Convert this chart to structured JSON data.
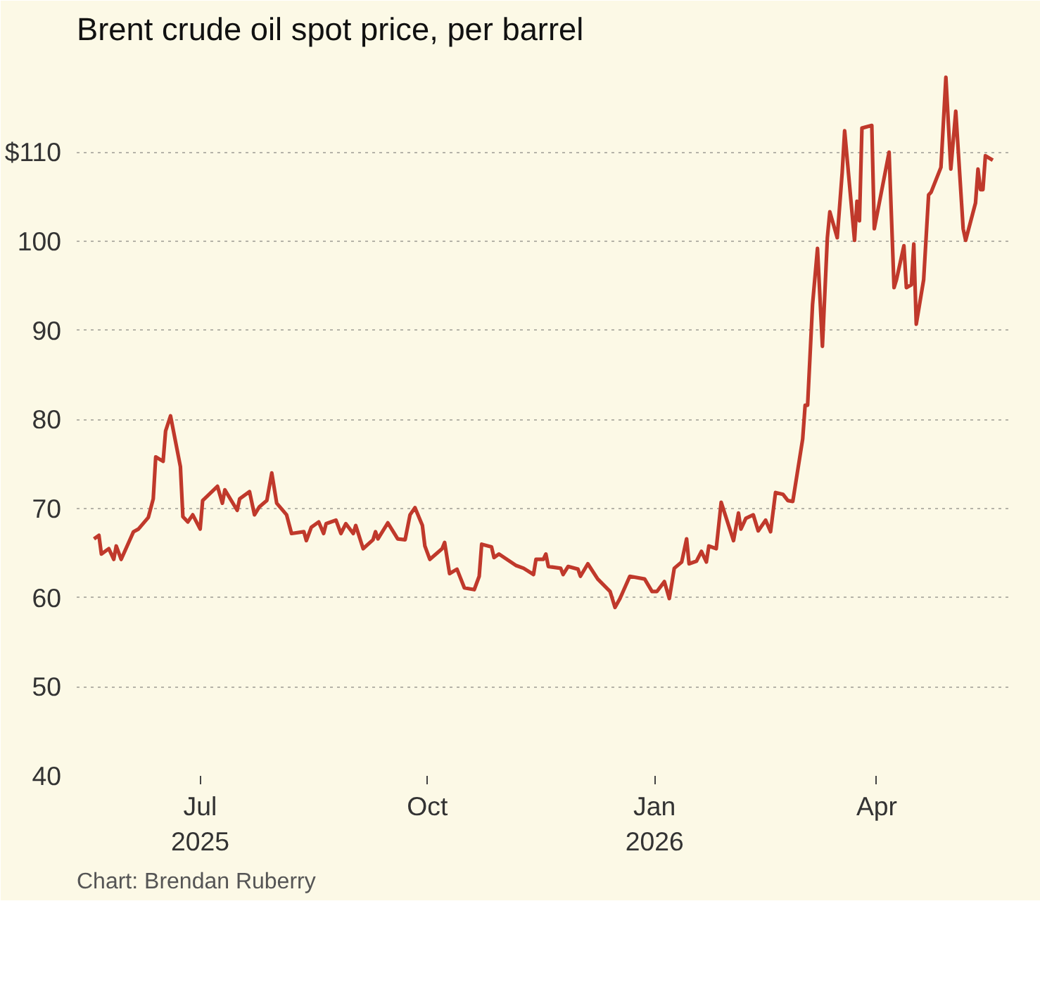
{
  "chart_data": {
    "type": "line",
    "title": "Brent crude oil spot price, per barrel",
    "annotations": [
      "Chart: Brendan Ruberry"
    ],
    "x": [
      "2025-05-19",
      "2025-05-21",
      "2025-05-22",
      "2025-05-25",
      "2025-05-27",
      "2025-05-28",
      "2025-05-30",
      "2025-06-04",
      "2025-06-06",
      "2025-06-10",
      "2025-06-12",
      "2025-06-13",
      "2025-06-16",
      "2025-06-17",
      "2025-06-19",
      "2025-06-23",
      "2025-06-24",
      "2025-06-26",
      "2025-06-28",
      "2025-07-01",
      "2025-07-02",
      "2025-07-08",
      "2025-07-10",
      "2025-07-11",
      "2025-07-16",
      "2025-07-17",
      "2025-07-21",
      "2025-07-23",
      "2025-07-25",
      "2025-07-28",
      "2025-07-30",
      "2025-08-01",
      "2025-08-05",
      "2025-08-07",
      "2025-08-12",
      "2025-08-13",
      "2025-08-15",
      "2025-08-18",
      "2025-08-20",
      "2025-08-21",
      "2025-08-25",
      "2025-08-27",
      "2025-08-29",
      "2025-09-01",
      "2025-09-02",
      "2025-09-05",
      "2025-09-09",
      "2025-09-10",
      "2025-09-11",
      "2025-09-15",
      "2025-09-19",
      "2025-09-22",
      "2025-09-24",
      "2025-09-26",
      "2025-09-29",
      "2025-09-30",
      "2025-10-02",
      "2025-10-07",
      "2025-10-08",
      "2025-10-10",
      "2025-10-13",
      "2025-10-16",
      "2025-10-20",
      "2025-10-22",
      "2025-10-23",
      "2025-10-27",
      "2025-10-28",
      "2025-10-30",
      "2025-11-06",
      "2025-11-09",
      "2025-11-13",
      "2025-11-14",
      "2025-11-17",
      "2025-11-18",
      "2025-11-19",
      "2025-11-24",
      "2025-11-25",
      "2025-11-27",
      "2025-12-01",
      "2025-12-02",
      "2025-12-05",
      "2025-12-09",
      "2025-12-14",
      "2025-12-16",
      "2025-12-18",
      "2025-12-22",
      "2025-12-28",
      "2025-12-31",
      "2026-01-02",
      "2026-01-05",
      "2026-01-07",
      "2026-01-09",
      "2026-01-12",
      "2026-01-14",
      "2026-01-15",
      "2026-01-18",
      "2026-01-20",
      "2026-01-22",
      "2026-01-23",
      "2026-01-26",
      "2026-01-28",
      "2026-02-02",
      "2026-02-04",
      "2026-02-05",
      "2026-02-07",
      "2026-02-10",
      "2026-02-12",
      "2026-02-15",
      "2026-02-17",
      "2026-02-19",
      "2026-02-22",
      "2026-02-24",
      "2026-02-26",
      "2026-03-02",
      "2026-03-03",
      "2026-03-04",
      "2026-03-06",
      "2026-03-08",
      "2026-03-10",
      "2026-03-12",
      "2026-03-13",
      "2026-03-16",
      "2026-03-18",
      "2026-03-19",
      "2026-03-23",
      "2026-03-24",
      "2026-03-25",
      "2026-03-26",
      "2026-03-30",
      "2026-03-31",
      "2026-04-06",
      "2026-04-08",
      "2026-04-09",
      "2026-04-12",
      "2026-04-13",
      "2026-04-15",
      "2026-04-16",
      "2026-04-17",
      "2026-04-20",
      "2026-04-22",
      "2026-04-23",
      "2026-04-27",
      "2026-04-29",
      "2026-05-01",
      "2026-05-03",
      "2026-05-06",
      "2026-05-07",
      "2026-05-11",
      "2026-05-12",
      "2026-05-13",
      "2026-05-14",
      "2026-05-15",
      "2026-05-18"
    ],
    "series": [
      {
        "color": "#c0392b",
        "values": [
          66.6,
          67.0,
          64.9,
          65.5,
          64.3,
          65.8,
          64.3,
          67.4,
          67.7,
          69.0,
          71.1,
          75.8,
          75.3,
          78.7,
          80.4,
          74.7,
          69.1,
          68.5,
          69.3,
          67.7,
          70.9,
          72.5,
          70.6,
          72.1,
          69.8,
          71.1,
          71.9,
          69.3,
          70.2,
          70.9,
          74.0,
          70.6,
          69.3,
          67.2,
          67.4,
          66.4,
          67.9,
          68.5,
          67.2,
          68.3,
          68.7,
          67.2,
          68.3,
          67.2,
          68.1,
          65.5,
          66.5,
          67.4,
          66.6,
          68.4,
          66.6,
          66.5,
          69.3,
          70.1,
          68.1,
          65.8,
          64.3,
          65.5,
          66.2,
          62.7,
          63.2,
          61.1,
          60.9,
          62.4,
          66.0,
          65.7,
          64.5,
          64.9,
          63.6,
          63.3,
          62.6,
          64.3,
          64.3,
          64.9,
          63.5,
          63.3,
          62.6,
          63.5,
          63.2,
          62.4,
          63.8,
          62.1,
          60.7,
          58.9,
          59.9,
          62.4,
          62.1,
          60.7,
          60.7,
          61.8,
          59.9,
          63.3,
          64.0,
          66.6,
          63.8,
          64.1,
          65.2,
          64.0,
          65.8,
          65.5,
          70.7,
          66.4,
          69.5,
          67.7,
          68.9,
          69.3,
          67.5,
          68.7,
          67.4,
          71.8,
          71.6,
          70.9,
          70.8,
          77.8,
          81.6,
          81.6,
          92.9,
          99.2,
          88.2,
          100.4,
          103.3,
          100.4,
          107.7,
          112.4,
          100.1,
          104.5,
          102.3,
          112.7,
          113.0,
          101.4,
          110.0,
          94.8,
          95.7,
          99.5,
          94.8,
          95.1,
          99.7,
          90.7,
          95.7,
          105.2,
          105.5,
          108.3,
          118.4,
          108.1,
          114.6,
          101.4,
          100.1,
          104.3,
          108.1,
          105.8,
          105.8,
          109.6,
          109.1
        ]
      }
    ],
    "xlim": [
      "2025-05-12",
      "2026-05-26"
    ],
    "xticks": [
      {
        "value": "2025-07-01",
        "label": "Jul\n2025"
      },
      {
        "value": "2025-10-01",
        "label": "Oct"
      },
      {
        "value": "2026-01-01",
        "label": "Jan\n2026"
      },
      {
        "value": "2026-04-01",
        "label": "Apr"
      }
    ],
    "ylim": [
      40,
      121
    ],
    "yticks": [
      40,
      50,
      60,
      70,
      80,
      90,
      100,
      {
        "value": 110,
        "label": "$110"
      }
    ],
    "grid": "y",
    "marker": "none",
    "line_style": "solid"
  }
}
